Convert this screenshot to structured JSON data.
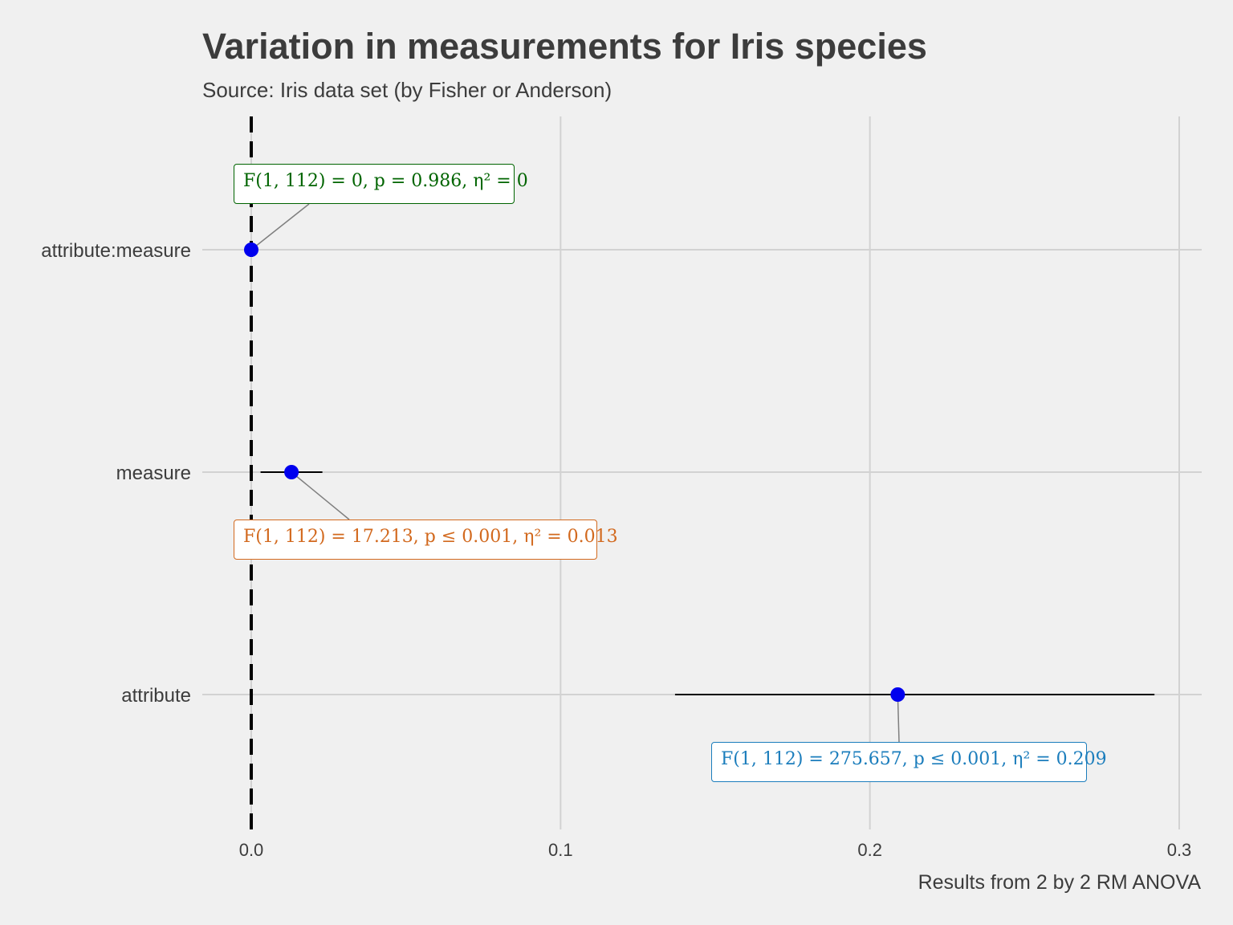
{
  "title": "Variation in measurements for Iris species",
  "subtitle": "Source: Iris data set (by Fisher or Anderson)",
  "caption": "Results from 2 by 2 RM ANOVA",
  "chart_data": {
    "type": "scatter",
    "orientation": "horizontal",
    "title": "Variation in measurements for Iris species",
    "subtitle": "Source: Iris data set (by Fisher or Anderson)",
    "caption": "Results from 2 by 2 RM ANOVA",
    "xlabel": "",
    "ylabel": "",
    "xlim": [
      -0.016,
      0.308
    ],
    "x_ticks": [
      0.0,
      0.1,
      0.2,
      0.3
    ],
    "x_tick_labels": [
      "0.0",
      "0.1",
      "0.2",
      "0.3"
    ],
    "reference_line": {
      "x": 0,
      "style": "dashed",
      "color": "#000000"
    },
    "grid": true,
    "point_color": "#0000ee",
    "categories": [
      "attribute:measure",
      "measure",
      "attribute"
    ],
    "points": [
      {
        "term": "attribute:measure",
        "estimate": 0.0,
        "ci_low": 0.0,
        "ci_high": 0.0,
        "label": "F(1, 112) = 0,  p = 0.986,  η² = 0",
        "label_color": "#006400"
      },
      {
        "term": "measure",
        "estimate": 0.013,
        "ci_low": 0.003,
        "ci_high": 0.023,
        "label": "F(1, 112) = 17.213,  p ≤ 0.001,  η² = 0.013",
        "label_color": "#d2691e"
      },
      {
        "term": "attribute",
        "estimate": 0.209,
        "ci_low": 0.137,
        "ci_high": 0.292,
        "label": "F(1, 112) = 275.657,  p ≤ 0.001,  η² = 0.209",
        "label_color": "#1b7dbc"
      }
    ]
  }
}
